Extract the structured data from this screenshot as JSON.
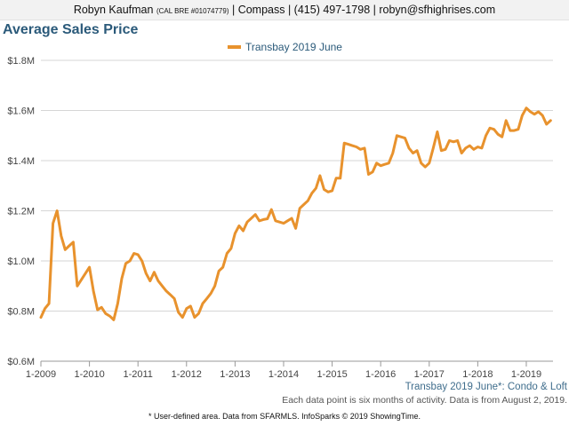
{
  "header": {
    "agent_name": "Robyn Kaufman",
    "license": "(CAL BRE #01074779)",
    "rest": "| Compass | (415) 497-1798 | robyn@sfhighrises.com"
  },
  "captions": {
    "area": "Transbay 2019 June*: Condo & Loft",
    "data_note": "Each data point is six months of activity. Data is from August 2, 2019.",
    "footer": "* User-defined area. Data from SFARMLS. InfoSparks © 2019 ShowingTime."
  },
  "colors": {
    "series": "#e8922d",
    "grid": "#d6d6d6",
    "title": "#2b5a7a"
  },
  "chart_data": {
    "type": "line",
    "title": "Average Sales Price",
    "xlabel": "",
    "ylabel": "",
    "legend_position": "top-center",
    "x_range": [
      2009.0,
      2019.55
    ],
    "ylim": [
      600000,
      1800000
    ],
    "y_ticks": [
      600000,
      800000,
      1000000,
      1200000,
      1400000,
      1600000,
      1800000
    ],
    "y_tick_labels": [
      "$0.6M",
      "$0.8M",
      "$1.0M",
      "$1.2M",
      "$1.4M",
      "$1.6M",
      "$1.8M"
    ],
    "x_ticks": [
      2009,
      2010,
      2011,
      2012,
      2013,
      2014,
      2015,
      2016,
      2017,
      2018,
      2019
    ],
    "x_tick_labels": [
      "1-2009",
      "1-2010",
      "1-2011",
      "1-2012",
      "1-2013",
      "1-2014",
      "1-2015",
      "1-2016",
      "1-2017",
      "1-2018",
      "1-2019"
    ],
    "series": [
      {
        "name": "Transbay 2019 June",
        "x": [
          2009.0,
          2009.083,
          2009.167,
          2009.25,
          2009.333,
          2009.417,
          2009.5,
          2009.583,
          2009.667,
          2009.75,
          2009.833,
          2009.917,
          2010.0,
          2010.083,
          2010.167,
          2010.25,
          2010.333,
          2010.417,
          2010.5,
          2010.583,
          2010.667,
          2010.75,
          2010.833,
          2010.917,
          2011.0,
          2011.083,
          2011.167,
          2011.25,
          2011.333,
          2011.417,
          2011.5,
          2011.583,
          2011.667,
          2011.75,
          2011.833,
          2011.917,
          2012.0,
          2012.083,
          2012.167,
          2012.25,
          2012.333,
          2012.417,
          2012.5,
          2012.583,
          2012.667,
          2012.75,
          2012.833,
          2012.917,
          2013.0,
          2013.083,
          2013.167,
          2013.25,
          2013.333,
          2013.417,
          2013.5,
          2013.583,
          2013.667,
          2013.75,
          2013.833,
          2013.917,
          2014.0,
          2014.083,
          2014.167,
          2014.25,
          2014.333,
          2014.417,
          2014.5,
          2014.583,
          2014.667,
          2014.75,
          2014.833,
          2014.917,
          2015.0,
          2015.083,
          2015.167,
          2015.25,
          2015.333,
          2015.417,
          2015.5,
          2015.583,
          2015.667,
          2015.75,
          2015.833,
          2015.917,
          2016.0,
          2016.083,
          2016.167,
          2016.25,
          2016.333,
          2016.417,
          2016.5,
          2016.583,
          2016.667,
          2016.75,
          2016.833,
          2016.917,
          2017.0,
          2017.083,
          2017.167,
          2017.25,
          2017.333,
          2017.417,
          2017.5,
          2017.583,
          2017.667,
          2017.75,
          2017.833,
          2017.917,
          2018.0,
          2018.083,
          2018.167,
          2018.25,
          2018.333,
          2018.417,
          2018.5,
          2018.583,
          2018.667,
          2018.75,
          2018.833,
          2018.917,
          2019.0,
          2019.083,
          2019.167,
          2019.25,
          2019.333,
          2019.417,
          2019.5
        ],
        "values": [
          775000,
          810000,
          830000,
          1150000,
          1200000,
          1100000,
          1045000,
          1060000,
          1075000,
          900000,
          925000,
          950000,
          975000,
          880000,
          805000,
          815000,
          790000,
          780000,
          765000,
          830000,
          930000,
          990000,
          1000000,
          1030000,
          1025000,
          1000000,
          950000,
          920000,
          955000,
          920000,
          900000,
          880000,
          865000,
          850000,
          795000,
          775000,
          810000,
          820000,
          775000,
          790000,
          830000,
          850000,
          870000,
          900000,
          960000,
          975000,
          1030000,
          1050000,
          1110000,
          1140000,
          1120000,
          1155000,
          1170000,
          1185000,
          1160000,
          1165000,
          1168000,
          1205000,
          1160000,
          1155000,
          1150000,
          1160000,
          1170000,
          1130000,
          1210000,
          1225000,
          1240000,
          1270000,
          1290000,
          1340000,
          1285000,
          1275000,
          1280000,
          1330000,
          1330000,
          1470000,
          1465000,
          1460000,
          1455000,
          1445000,
          1450000,
          1345000,
          1355000,
          1390000,
          1380000,
          1385000,
          1390000,
          1430000,
          1500000,
          1495000,
          1490000,
          1450000,
          1430000,
          1440000,
          1390000,
          1375000,
          1390000,
          1450000,
          1515000,
          1440000,
          1445000,
          1480000,
          1475000,
          1480000,
          1430000,
          1450000,
          1460000,
          1445000,
          1455000,
          1450000,
          1500000,
          1530000,
          1525000,
          1505000,
          1495000,
          1560000,
          1520000,
          1520000,
          1525000,
          1580000,
          1610000,
          1595000,
          1585000,
          1595000,
          1580000,
          1545000,
          1560000
        ]
      }
    ]
  }
}
